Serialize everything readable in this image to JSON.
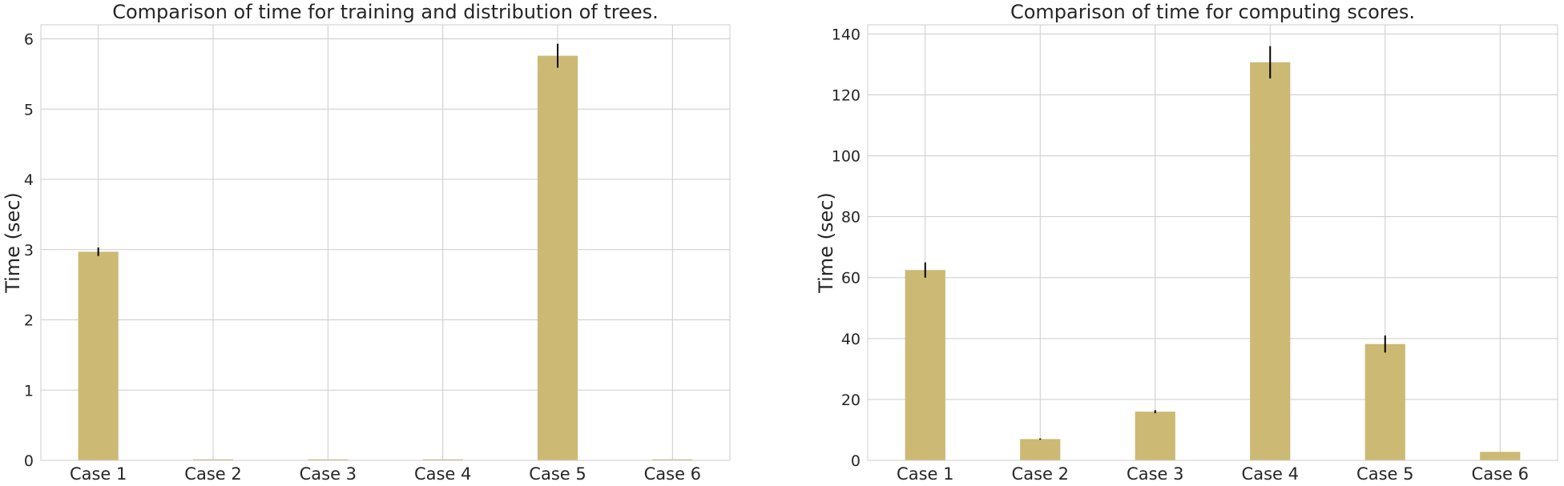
{
  "chart_data": [
    {
      "type": "bar",
      "title": "Comparison of time for training and distribution of trees.",
      "xlabel": "",
      "ylabel": "Time (sec)",
      "categories": [
        "Case 1",
        "Case 2",
        "Case 3",
        "Case 4",
        "Case 5",
        "Case 6"
      ],
      "values": [
        2.97,
        0.015,
        0.015,
        0.015,
        5.76,
        0.015
      ],
      "errors": [
        0.06,
        0,
        0,
        0,
        0.17,
        0
      ],
      "ylim": [
        0,
        6.2
      ],
      "yticks": [
        0,
        1,
        2,
        3,
        4,
        5,
        6
      ],
      "grid": true,
      "colors": {
        "bar": "#ccb974",
        "error": "#000000",
        "grid": "#cccccc",
        "spine": "#cccccc"
      }
    },
    {
      "type": "bar",
      "title": "Comparison of time for computing scores.",
      "xlabel": "",
      "ylabel": "Time (sec)",
      "categories": [
        "Case 1",
        "Case 2",
        "Case 3",
        "Case 4",
        "Case 5",
        "Case 6"
      ],
      "values": [
        62.5,
        7.0,
        16.0,
        130.7,
        38.2,
        2.8
      ],
      "errors": [
        2.5,
        0.2,
        0.5,
        5.3,
        2.8,
        0
      ],
      "ylim": [
        0,
        143
      ],
      "yticks": [
        0,
        20,
        40,
        60,
        80,
        100,
        120,
        140
      ],
      "grid": true,
      "colors": {
        "bar": "#ccb974",
        "error": "#000000",
        "grid": "#cccccc",
        "spine": "#cccccc"
      }
    }
  ]
}
